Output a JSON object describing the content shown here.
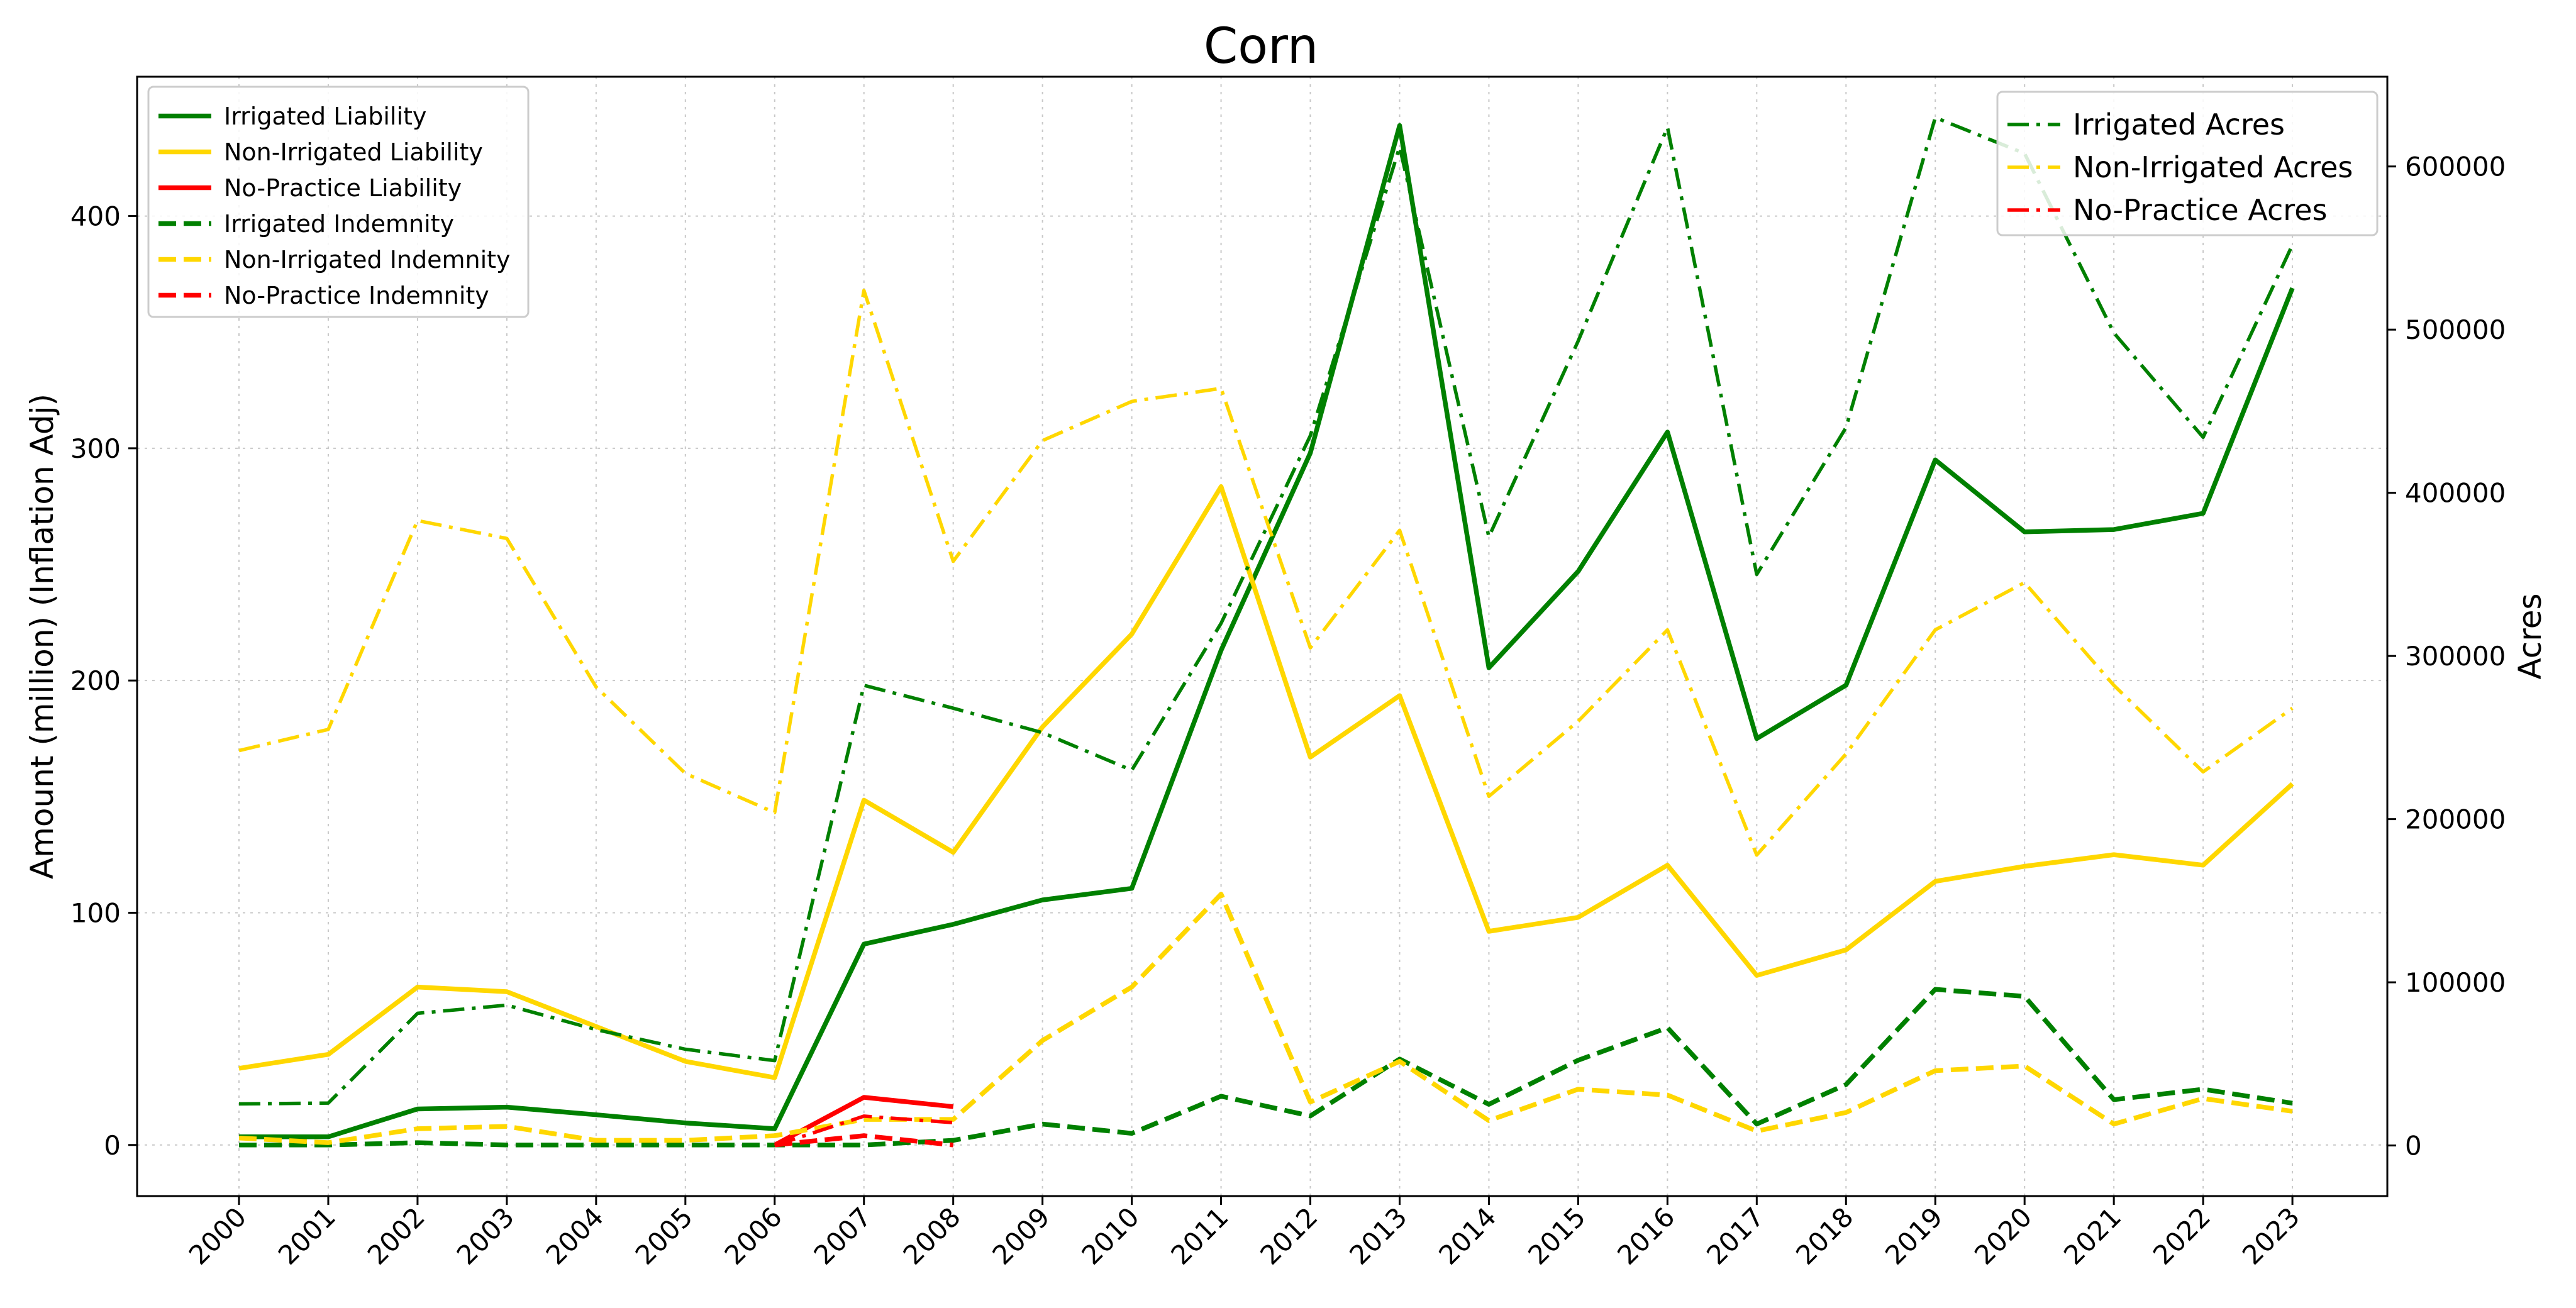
{
  "chart_data": {
    "type": "line",
    "title": "Corn",
    "xlabel": "",
    "ylabel": "Amount (million) (Inflation Adj)",
    "y2label": "Acres",
    "x": [
      2000,
      2001,
      2002,
      2003,
      2004,
      2005,
      2006,
      2007,
      2008,
      2009,
      2010,
      2011,
      2012,
      2013,
      2014,
      2015,
      2016,
      2017,
      2018,
      2019,
      2020,
      2021,
      2022,
      2023
    ],
    "ylim": [
      -22,
      460
    ],
    "y2lim": [
      -31000,
      655000
    ],
    "yticks": [
      0,
      100,
      200,
      300,
      400
    ],
    "y2ticks": [
      0,
      100000,
      200000,
      300000,
      400000,
      500000,
      600000
    ],
    "grid": true,
    "legend_left_placement": "top-left",
    "legend_right_placement": "top-right",
    "series": [
      {
        "name": "Irrigated Liability",
        "axis": "left",
        "style": "solid",
        "color": "#008000",
        "x": [
          2000,
          2001,
          2002,
          2003,
          2004,
          2005,
          2006,
          2007,
          2008,
          2009,
          2010,
          2011,
          2012,
          2013,
          2014,
          2015,
          2016,
          2017,
          2018,
          2019,
          2020,
          2021,
          2022,
          2023
        ],
        "values": [
          3.5,
          3.5,
          15.5,
          16.3,
          13,
          9.5,
          7,
          86.5,
          95,
          105.5,
          110.5,
          213,
          298,
          439,
          205.5,
          247,
          307,
          175,
          198,
          295,
          264,
          265,
          272,
          369
        ]
      },
      {
        "name": "Non-Irrigated Liability",
        "axis": "left",
        "style": "solid",
        "color": "#FFD700",
        "x": [
          2000,
          2001,
          2002,
          2003,
          2004,
          2005,
          2006,
          2007,
          2008,
          2009,
          2010,
          2011,
          2012,
          2013,
          2014,
          2015,
          2016,
          2017,
          2018,
          2019,
          2020,
          2021,
          2022,
          2023
        ],
        "values": [
          33,
          39,
          68,
          66,
          51,
          36,
          29,
          148.5,
          126,
          180,
          220,
          283.5,
          167,
          193.5,
          92,
          98,
          120.5,
          73,
          84,
          113.5,
          120,
          125,
          120.5,
          155.5
        ]
      },
      {
        "name": "No-Practice Liability",
        "axis": "left",
        "style": "solid",
        "color": "#FF0000",
        "x": [
          2006,
          2007,
          2008
        ],
        "values": [
          0,
          20.5,
          16.5
        ]
      },
      {
        "name": "Irrigated Indemnity",
        "axis": "left",
        "style": "dashed",
        "color": "#008000",
        "x": [
          2000,
          2001,
          2002,
          2003,
          2004,
          2005,
          2006,
          2007,
          2008,
          2009,
          2010,
          2011,
          2012,
          2013,
          2014,
          2015,
          2016,
          2017,
          2018,
          2019,
          2020,
          2021,
          2022,
          2023
        ],
        "values": [
          0,
          0,
          1,
          0,
          0,
          0,
          0,
          0,
          2,
          9,
          5,
          21,
          12.5,
          37,
          17.5,
          36.5,
          50.5,
          9,
          26,
          67,
          64,
          19.5,
          24,
          18
        ]
      },
      {
        "name": "Non-Irrigated Indemnity",
        "axis": "left",
        "style": "dashed",
        "color": "#FFD700",
        "x": [
          2000,
          2001,
          2002,
          2003,
          2004,
          2005,
          2006,
          2007,
          2008,
          2009,
          2010,
          2011,
          2012,
          2013,
          2014,
          2015,
          2016,
          2017,
          2018,
          2019,
          2020,
          2021,
          2022,
          2023
        ],
        "values": [
          3,
          1,
          7,
          8,
          2,
          2,
          4,
          11,
          11,
          45,
          68,
          108,
          18.5,
          36,
          10.5,
          24,
          21.5,
          6,
          14,
          32,
          34,
          9,
          20,
          14.5
        ]
      },
      {
        "name": "No-Practice Indemnity",
        "axis": "left",
        "style": "dashed",
        "color": "#FF0000",
        "x": [
          2006,
          2007,
          2008
        ],
        "values": [
          0,
          4,
          0
        ]
      },
      {
        "name": "Irrigated Acres",
        "axis": "right",
        "style": "dashdot",
        "color": "#008000",
        "x": [
          2000,
          2001,
          2002,
          2003,
          2004,
          2005,
          2006,
          2007,
          2008,
          2009,
          2010,
          2011,
          2012,
          2013,
          2014,
          2015,
          2016,
          2017,
          2018,
          2019,
          2020,
          2021,
          2022,
          2023
        ],
        "values": [
          25500,
          26000,
          81000,
          86000,
          71000,
          59000,
          52000,
          282000,
          268000,
          253000,
          230000,
          320000,
          435000,
          612000,
          373000,
          493000,
          624000,
          350000,
          440000,
          630000,
          608000,
          498000,
          434000,
          552000
        ]
      },
      {
        "name": "Non-Irrigated Acres",
        "axis": "right",
        "style": "dashdot",
        "color": "#FFD700",
        "x": [
          2000,
          2001,
          2002,
          2003,
          2004,
          2005,
          2006,
          2007,
          2008,
          2009,
          2010,
          2011,
          2012,
          2013,
          2014,
          2015,
          2016,
          2017,
          2018,
          2019,
          2020,
          2021,
          2022,
          2023
        ],
        "values": [
          242000,
          255000,
          383000,
          372000,
          281000,
          228000,
          204000,
          524000,
          358000,
          432000,
          456000,
          464000,
          305000,
          377000,
          214000,
          260000,
          316000,
          178000,
          240000,
          316000,
          345000,
          282000,
          229000,
          268000
        ]
      },
      {
        "name": "No-Practice Acres",
        "axis": "right",
        "style": "dashdot",
        "color": "#FF0000",
        "x": [
          2006,
          2007,
          2008
        ],
        "values": [
          0,
          18000,
          14000
        ]
      }
    ]
  }
}
